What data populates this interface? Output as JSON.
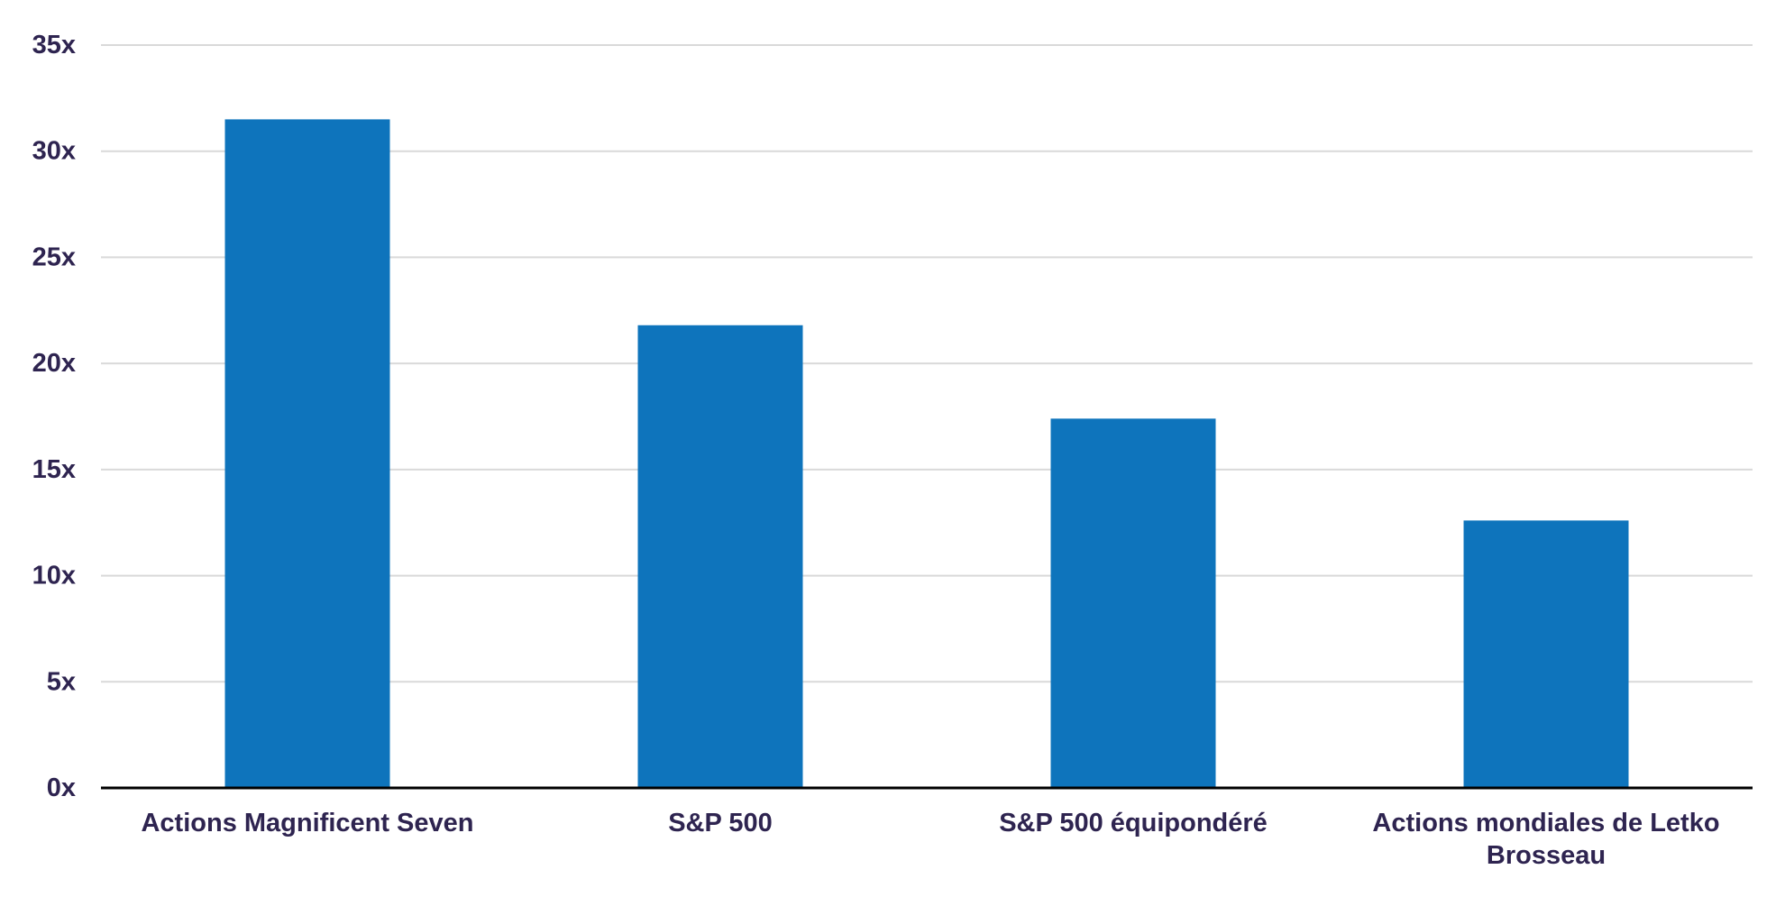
{
  "chart_data": {
    "type": "bar",
    "categories": [
      [
        "Actions Magnificent Seven"
      ],
      [
        "S&P 500"
      ],
      [
        "S&P 500 équipondéré"
      ],
      [
        "Actions mondiales de Letko",
        "Brosseau"
      ]
    ],
    "values": [
      31.5,
      21.8,
      17.4,
      12.6
    ],
    "y_ticks": [
      "0x",
      "5x",
      "10x",
      "15x",
      "20x",
      "25x",
      "30x",
      "35x"
    ],
    "ylim": [
      0,
      35
    ],
    "title": "",
    "xlabel": "",
    "ylabel": "",
    "grid": true,
    "legend": "none",
    "colors": {
      "bar": "#0e74bc",
      "grid": "#d9d9d9",
      "axis": "#000000",
      "text": "#2e2450"
    }
  }
}
